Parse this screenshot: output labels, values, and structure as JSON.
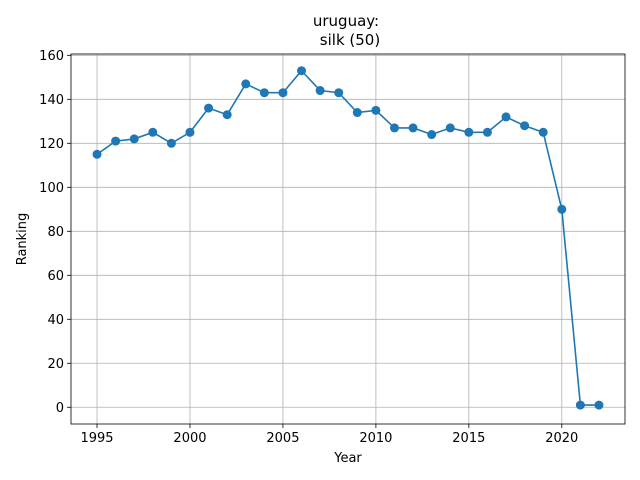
{
  "chart_data": {
    "type": "line",
    "title_line1": "uruguay:",
    "title_line2": "silk (50)",
    "xlabel": "Year",
    "ylabel": "Ranking",
    "xlim": [
      1993.6,
      2023.4
    ],
    "ylim": [
      -7.6,
      160.6
    ],
    "xticks": [
      1995,
      2000,
      2005,
      2010,
      2015,
      2020
    ],
    "yticks": [
      0,
      20,
      40,
      60,
      80,
      100,
      120,
      140,
      160
    ],
    "grid": true,
    "color": "#1f77b4",
    "series": [
      {
        "x": [
          1995,
          1996,
          1997,
          1998,
          1999,
          2000,
          2001,
          2002,
          2003,
          2004,
          2005,
          2006,
          2007,
          2008,
          2009,
          2010,
          2011,
          2012,
          2013,
          2014,
          2015,
          2016,
          2017,
          2018,
          2019,
          2020,
          2021,
          2022
        ],
        "values": [
          115,
          121,
          122,
          125,
          120,
          125,
          136,
          133,
          147,
          143,
          143,
          153,
          144,
          143,
          134,
          135,
          127,
          127,
          124,
          127,
          125,
          125,
          132,
          128,
          125,
          90,
          1,
          1
        ]
      }
    ]
  }
}
